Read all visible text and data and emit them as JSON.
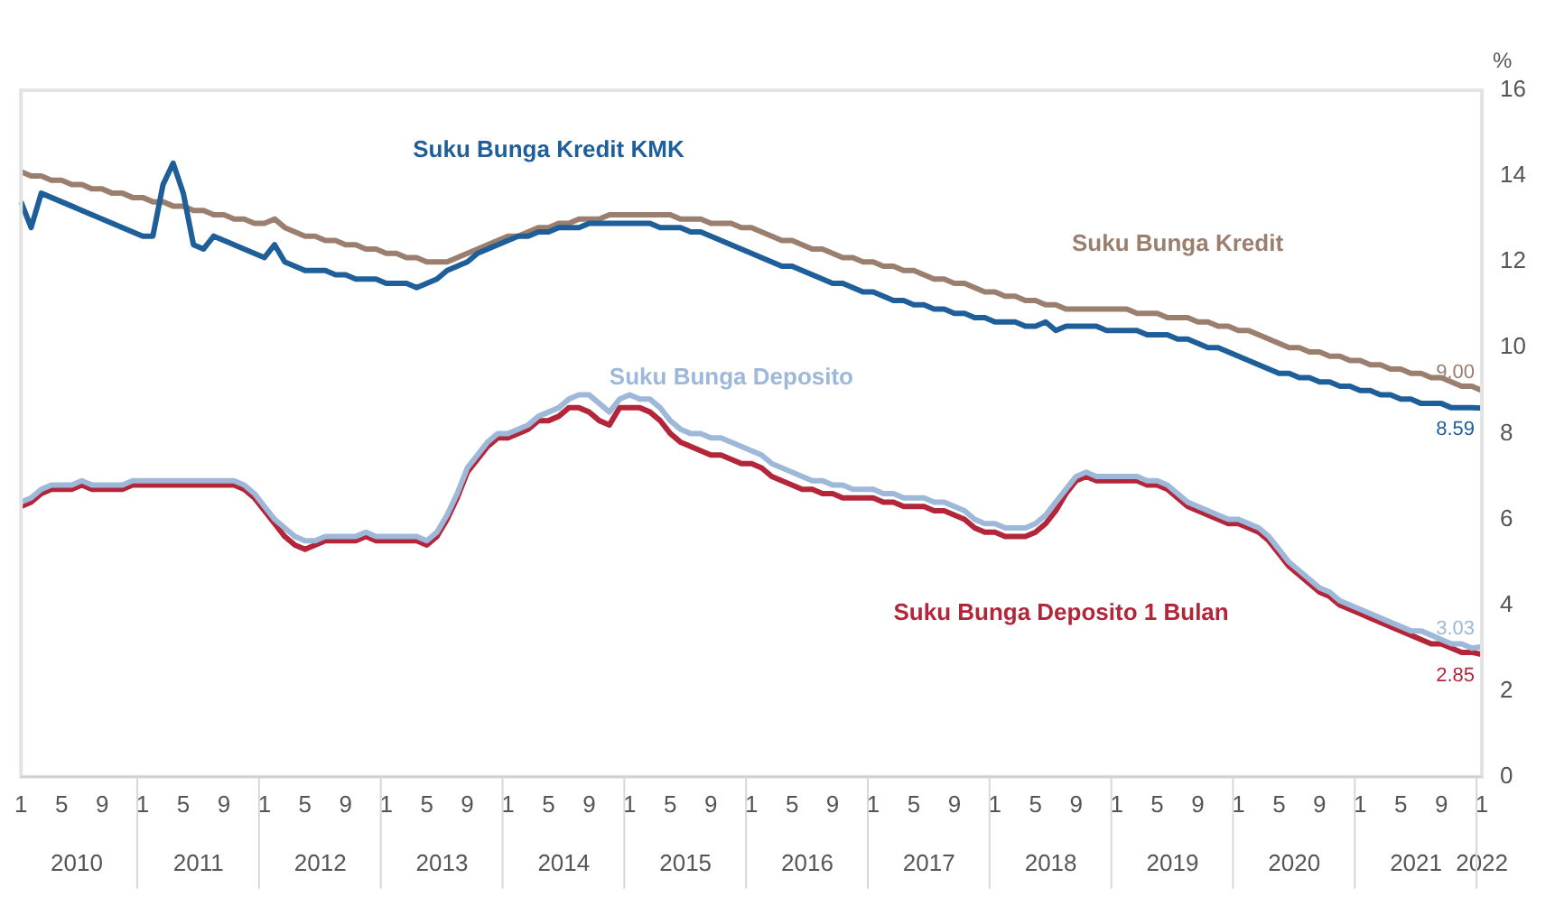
{
  "chart_data": {
    "type": "line",
    "ylabel": "%",
    "ylim": [
      0,
      16
    ],
    "yticks": [
      0,
      2,
      4,
      6,
      8,
      10,
      12,
      14,
      16
    ],
    "grid": false,
    "legend": false,
    "marker": "none",
    "line_style": "solid",
    "categories": [
      "1",
      null,
      null,
      null,
      "5",
      null,
      null,
      null,
      "9",
      null,
      null,
      null,
      "1",
      null,
      null,
      null,
      "5",
      null,
      null,
      null,
      "9",
      null,
      null,
      null,
      "1",
      null,
      null,
      null,
      "5",
      null,
      null,
      null,
      "9",
      null,
      null,
      null,
      "1",
      null,
      null,
      null,
      "5",
      null,
      null,
      null,
      "9",
      null,
      null,
      null,
      "1",
      null,
      null,
      null,
      "5",
      null,
      null,
      null,
      "9",
      null,
      null,
      null,
      "1",
      null,
      null,
      null,
      "5",
      null,
      null,
      null,
      "9",
      null,
      null,
      null,
      "1",
      null,
      null,
      null,
      "5",
      null,
      null,
      null,
      "9",
      null,
      null,
      null,
      "1",
      null,
      null,
      null,
      "5",
      null,
      null,
      null,
      "9",
      null,
      null,
      null,
      "1",
      null,
      null,
      null,
      "5",
      null,
      null,
      null,
      "9",
      null,
      null,
      null,
      "1",
      null,
      null,
      null,
      "5",
      null,
      null,
      null,
      "9",
      null,
      null,
      null,
      "1",
      null,
      null,
      null,
      "5",
      null,
      null,
      null,
      "9",
      null,
      null,
      null,
      "1",
      null,
      null,
      null,
      "5",
      null,
      null,
      null,
      "9",
      null,
      null,
      null,
      "1"
    ],
    "annotations": [
      "2010",
      "2011",
      "2012",
      "2013",
      "2014",
      "2015",
      "2016",
      "2017",
      "2018",
      "2019",
      "2020",
      "2021",
      "2022"
    ],
    "series": [
      {
        "name": "Suku Bunga Kredit KMK",
        "color": "#1f5f99",
        "values": [
          13.4,
          12.8,
          13.6,
          13.5,
          13.4,
          13.3,
          13.2,
          13.1,
          13.0,
          12.9,
          12.8,
          12.7,
          12.6,
          12.6,
          13.8,
          14.3,
          13.6,
          12.4,
          12.3,
          12.6,
          12.5,
          12.4,
          12.3,
          12.2,
          12.1,
          12.4,
          12.0,
          11.9,
          11.8,
          11.8,
          11.8,
          11.7,
          11.7,
          11.6,
          11.6,
          11.6,
          11.5,
          11.5,
          11.5,
          11.4,
          11.5,
          11.6,
          11.8,
          11.9,
          12.0,
          12.2,
          12.3,
          12.4,
          12.5,
          12.6,
          12.6,
          12.7,
          12.7,
          12.8,
          12.8,
          12.8,
          12.9,
          12.9,
          12.9,
          12.9,
          12.9,
          12.9,
          12.9,
          12.8,
          12.8,
          12.8,
          12.7,
          12.7,
          12.6,
          12.5,
          12.4,
          12.3,
          12.2,
          12.1,
          12.0,
          11.9,
          11.9,
          11.8,
          11.7,
          11.6,
          11.5,
          11.5,
          11.4,
          11.3,
          11.3,
          11.2,
          11.1,
          11.1,
          11.0,
          11.0,
          10.9,
          10.9,
          10.8,
          10.8,
          10.7,
          10.7,
          10.6,
          10.6,
          10.6,
          10.5,
          10.5,
          10.6,
          10.4,
          10.5,
          10.5,
          10.5,
          10.5,
          10.4,
          10.4,
          10.4,
          10.4,
          10.3,
          10.3,
          10.3,
          10.2,
          10.2,
          10.1,
          10.0,
          10.0,
          9.9,
          9.8,
          9.7,
          9.6,
          9.5,
          9.4,
          9.4,
          9.3,
          9.3,
          9.2,
          9.2,
          9.1,
          9.1,
          9.0,
          9.0,
          8.9,
          8.9,
          8.8,
          8.8,
          8.7,
          8.7,
          8.7,
          8.6,
          8.6,
          8.6,
          8.59
        ],
        "value_labels": [
          null,
          null,
          null,
          null,
          null,
          null,
          null,
          null,
          null,
          null,
          null,
          null,
          null,
          null,
          null,
          null,
          null,
          null,
          null,
          null,
          null,
          null,
          null,
          null,
          null,
          null,
          null,
          null,
          null,
          null,
          null,
          null,
          null,
          null,
          null,
          null,
          null,
          null,
          null,
          null,
          null,
          null,
          null,
          null,
          null,
          null,
          null,
          null,
          null,
          null,
          null,
          null,
          null,
          null,
          null,
          null,
          null,
          null,
          null,
          null,
          null,
          null,
          null,
          null,
          null,
          null,
          null,
          null,
          null,
          null,
          null,
          null,
          null,
          null,
          null,
          null,
          null,
          null,
          null,
          null,
          null,
          null,
          null,
          null,
          null,
          null,
          null,
          null,
          null,
          null,
          null,
          null,
          null,
          null,
          null,
          null,
          null,
          null,
          null,
          null,
          null,
          null,
          null,
          null,
          null,
          null,
          null,
          null,
          null,
          null,
          null,
          null,
          null,
          null,
          null,
          null,
          null,
          null,
          null,
          null,
          null,
          null,
          null,
          null,
          null,
          null,
          null,
          null,
          null,
          null,
          null,
          null,
          null,
          null,
          null,
          null,
          null,
          null,
          null,
          null,
          null,
          null,
          null,
          null,
          "8.59"
        ]
      },
      {
        "name": "Suku Bunga Kredit",
        "color": "#9a7f6e",
        "values": [
          14.1,
          14.0,
          14.0,
          13.9,
          13.9,
          13.8,
          13.8,
          13.7,
          13.7,
          13.6,
          13.6,
          13.5,
          13.5,
          13.4,
          13.4,
          13.3,
          13.3,
          13.2,
          13.2,
          13.1,
          13.1,
          13.0,
          13.0,
          12.9,
          12.9,
          13.0,
          12.8,
          12.7,
          12.6,
          12.6,
          12.5,
          12.5,
          12.4,
          12.4,
          12.3,
          12.3,
          12.2,
          12.2,
          12.1,
          12.1,
          12.0,
          12.0,
          12.0,
          12.1,
          12.2,
          12.3,
          12.4,
          12.5,
          12.6,
          12.6,
          12.7,
          12.8,
          12.8,
          12.9,
          12.9,
          13.0,
          13.0,
          13.0,
          13.1,
          13.1,
          13.1,
          13.1,
          13.1,
          13.1,
          13.1,
          13.0,
          13.0,
          13.0,
          12.9,
          12.9,
          12.9,
          12.8,
          12.8,
          12.7,
          12.6,
          12.5,
          12.5,
          12.4,
          12.3,
          12.3,
          12.2,
          12.1,
          12.1,
          12.0,
          12.0,
          11.9,
          11.9,
          11.8,
          11.8,
          11.7,
          11.6,
          11.6,
          11.5,
          11.5,
          11.4,
          11.3,
          11.3,
          11.2,
          11.2,
          11.1,
          11.1,
          11.0,
          11.0,
          10.9,
          10.9,
          10.9,
          10.9,
          10.9,
          10.9,
          10.9,
          10.8,
          10.8,
          10.8,
          10.7,
          10.7,
          10.7,
          10.6,
          10.6,
          10.5,
          10.5,
          10.4,
          10.4,
          10.3,
          10.2,
          10.1,
          10.0,
          10.0,
          9.9,
          9.9,
          9.8,
          9.8,
          9.7,
          9.7,
          9.6,
          9.6,
          9.5,
          9.5,
          9.4,
          9.4,
          9.3,
          9.3,
          9.2,
          9.1,
          9.1,
          9.0
        ],
        "value_labels": [
          null,
          null,
          null,
          null,
          null,
          null,
          null,
          null,
          null,
          null,
          null,
          null,
          null,
          null,
          null,
          null,
          null,
          null,
          null,
          null,
          null,
          null,
          null,
          null,
          null,
          null,
          null,
          null,
          null,
          null,
          null,
          null,
          null,
          null,
          null,
          null,
          null,
          null,
          null,
          null,
          null,
          null,
          null,
          null,
          null,
          null,
          null,
          null,
          null,
          null,
          null,
          null,
          null,
          null,
          null,
          null,
          null,
          null,
          null,
          null,
          null,
          null,
          null,
          null,
          null,
          null,
          null,
          null,
          null,
          null,
          null,
          null,
          null,
          null,
          null,
          null,
          null,
          null,
          null,
          null,
          null,
          null,
          null,
          null,
          null,
          null,
          null,
          null,
          null,
          null,
          null,
          null,
          null,
          null,
          null,
          null,
          null,
          null,
          null,
          null,
          null,
          null,
          null,
          null,
          null,
          null,
          null,
          null,
          null,
          null,
          null,
          null,
          null,
          null,
          null,
          null,
          null,
          null,
          null,
          null,
          null,
          null,
          null,
          null,
          null,
          null,
          null,
          null,
          null,
          null,
          null,
          null,
          null,
          null,
          null,
          null,
          null,
          null,
          null,
          null,
          null,
          null,
          null,
          null,
          "9.00"
        ]
      },
      {
        "name": "Suku Bunga Deposito",
        "color": "#9db8d8",
        "values": [
          6.4,
          6.5,
          6.7,
          6.8,
          6.8,
          6.8,
          6.9,
          6.8,
          6.8,
          6.8,
          6.8,
          6.9,
          6.9,
          6.9,
          6.9,
          6.9,
          6.9,
          6.9,
          6.9,
          6.9,
          6.9,
          6.9,
          6.8,
          6.6,
          6.3,
          6.0,
          5.8,
          5.6,
          5.5,
          5.5,
          5.6,
          5.6,
          5.6,
          5.6,
          5.7,
          5.6,
          5.6,
          5.6,
          5.6,
          5.6,
          5.5,
          5.7,
          6.1,
          6.6,
          7.2,
          7.5,
          7.8,
          8.0,
          8.0,
          8.1,
          8.2,
          8.4,
          8.5,
          8.6,
          8.8,
          8.9,
          8.9,
          8.7,
          8.5,
          8.8,
          8.9,
          8.8,
          8.8,
          8.6,
          8.3,
          8.1,
          8.0,
          8.0,
          7.9,
          7.9,
          7.8,
          7.7,
          7.6,
          7.5,
          7.3,
          7.2,
          7.1,
          7.0,
          6.9,
          6.9,
          6.8,
          6.8,
          6.7,
          6.7,
          6.7,
          6.6,
          6.6,
          6.5,
          6.5,
          6.5,
          6.4,
          6.4,
          6.3,
          6.2,
          6.0,
          5.9,
          5.9,
          5.8,
          5.8,
          5.8,
          5.9,
          6.1,
          6.4,
          6.7,
          7.0,
          7.1,
          7.0,
          7.0,
          7.0,
          7.0,
          7.0,
          6.9,
          6.9,
          6.8,
          6.6,
          6.4,
          6.3,
          6.2,
          6.1,
          6.0,
          6.0,
          5.9,
          5.8,
          5.6,
          5.3,
          5.0,
          4.8,
          4.6,
          4.4,
          4.3,
          4.1,
          4.0,
          3.9,
          3.8,
          3.7,
          3.6,
          3.5,
          3.4,
          3.4,
          3.3,
          3.2,
          3.1,
          3.1,
          3.0,
          3.03
        ],
        "value_labels": [
          null,
          null,
          null,
          null,
          null,
          null,
          null,
          null,
          null,
          null,
          null,
          null,
          null,
          null,
          null,
          null,
          null,
          null,
          null,
          null,
          null,
          null,
          null,
          null,
          null,
          null,
          null,
          null,
          null,
          null,
          null,
          null,
          null,
          null,
          null,
          null,
          null,
          null,
          null,
          null,
          null,
          null,
          null,
          null,
          null,
          null,
          null,
          null,
          null,
          null,
          null,
          null,
          null,
          null,
          null,
          null,
          null,
          null,
          null,
          null,
          null,
          null,
          null,
          null,
          null,
          null,
          null,
          null,
          null,
          null,
          null,
          null,
          null,
          null,
          null,
          null,
          null,
          null,
          null,
          null,
          null,
          null,
          null,
          null,
          null,
          null,
          null,
          null,
          null,
          null,
          null,
          null,
          null,
          null,
          null,
          null,
          null,
          null,
          null,
          null,
          null,
          null,
          null,
          null,
          null,
          null,
          null,
          null,
          null,
          null,
          null,
          null,
          null,
          null,
          null,
          null,
          null,
          null,
          null,
          null,
          null,
          null,
          null,
          null,
          null,
          null,
          null,
          null,
          null,
          null,
          null,
          null,
          null,
          null,
          null,
          null,
          null,
          null,
          null,
          null,
          null,
          null,
          null,
          null,
          "3.03"
        ]
      },
      {
        "name": "Suku Bunga Deposito 1 Bulan",
        "color": "#b3263a",
        "values": [
          6.3,
          6.4,
          6.6,
          6.7,
          6.7,
          6.7,
          6.8,
          6.7,
          6.7,
          6.7,
          6.7,
          6.8,
          6.8,
          6.8,
          6.8,
          6.8,
          6.8,
          6.8,
          6.8,
          6.8,
          6.8,
          6.8,
          6.7,
          6.5,
          6.2,
          5.9,
          5.6,
          5.4,
          5.3,
          5.4,
          5.5,
          5.5,
          5.5,
          5.5,
          5.6,
          5.5,
          5.5,
          5.5,
          5.5,
          5.5,
          5.4,
          5.6,
          6.0,
          6.5,
          7.1,
          7.4,
          7.7,
          7.9,
          7.9,
          8.0,
          8.1,
          8.3,
          8.3,
          8.4,
          8.6,
          8.6,
          8.5,
          8.3,
          8.2,
          8.6,
          8.6,
          8.6,
          8.5,
          8.3,
          8.0,
          7.8,
          7.7,
          7.6,
          7.5,
          7.5,
          7.4,
          7.3,
          7.3,
          7.2,
          7.0,
          6.9,
          6.8,
          6.7,
          6.7,
          6.6,
          6.6,
          6.5,
          6.5,
          6.5,
          6.5,
          6.4,
          6.4,
          6.3,
          6.3,
          6.3,
          6.2,
          6.2,
          6.1,
          6.0,
          5.8,
          5.7,
          5.7,
          5.6,
          5.6,
          5.6,
          5.7,
          5.9,
          6.2,
          6.6,
          6.9,
          7.0,
          6.9,
          6.9,
          6.9,
          6.9,
          6.9,
          6.8,
          6.8,
          6.7,
          6.5,
          6.3,
          6.2,
          6.1,
          6.0,
          5.9,
          5.9,
          5.8,
          5.7,
          5.5,
          5.2,
          4.9,
          4.7,
          4.5,
          4.3,
          4.2,
          4.0,
          3.9,
          3.8,
          3.7,
          3.6,
          3.5,
          3.4,
          3.3,
          3.2,
          3.1,
          3.1,
          3.0,
          2.9,
          2.9,
          2.85
        ],
        "value_labels": [
          null,
          null,
          null,
          null,
          null,
          null,
          null,
          null,
          null,
          null,
          null,
          null,
          null,
          null,
          null,
          null,
          null,
          null,
          null,
          null,
          null,
          null,
          null,
          null,
          null,
          null,
          null,
          null,
          null,
          null,
          null,
          null,
          null,
          null,
          null,
          null,
          null,
          null,
          null,
          null,
          null,
          null,
          null,
          null,
          null,
          null,
          null,
          null,
          null,
          null,
          null,
          null,
          null,
          null,
          null,
          null,
          null,
          null,
          null,
          null,
          null,
          null,
          null,
          null,
          null,
          null,
          null,
          null,
          null,
          null,
          null,
          null,
          null,
          null,
          null,
          null,
          null,
          null,
          null,
          null,
          null,
          null,
          null,
          null,
          null,
          null,
          null,
          null,
          null,
          null,
          null,
          null,
          null,
          null,
          null,
          null,
          null,
          null,
          null,
          null,
          null,
          null,
          null,
          null,
          null,
          null,
          null,
          null,
          null,
          null,
          null,
          null,
          null,
          null,
          null,
          null,
          null,
          null,
          null,
          null,
          null,
          null,
          null,
          null,
          null,
          null,
          null,
          null,
          null,
          null,
          null,
          null,
          null,
          null,
          null,
          null,
          null,
          null,
          null,
          null,
          null,
          null,
          null,
          null,
          "2.85"
        ]
      }
    ]
  }
}
